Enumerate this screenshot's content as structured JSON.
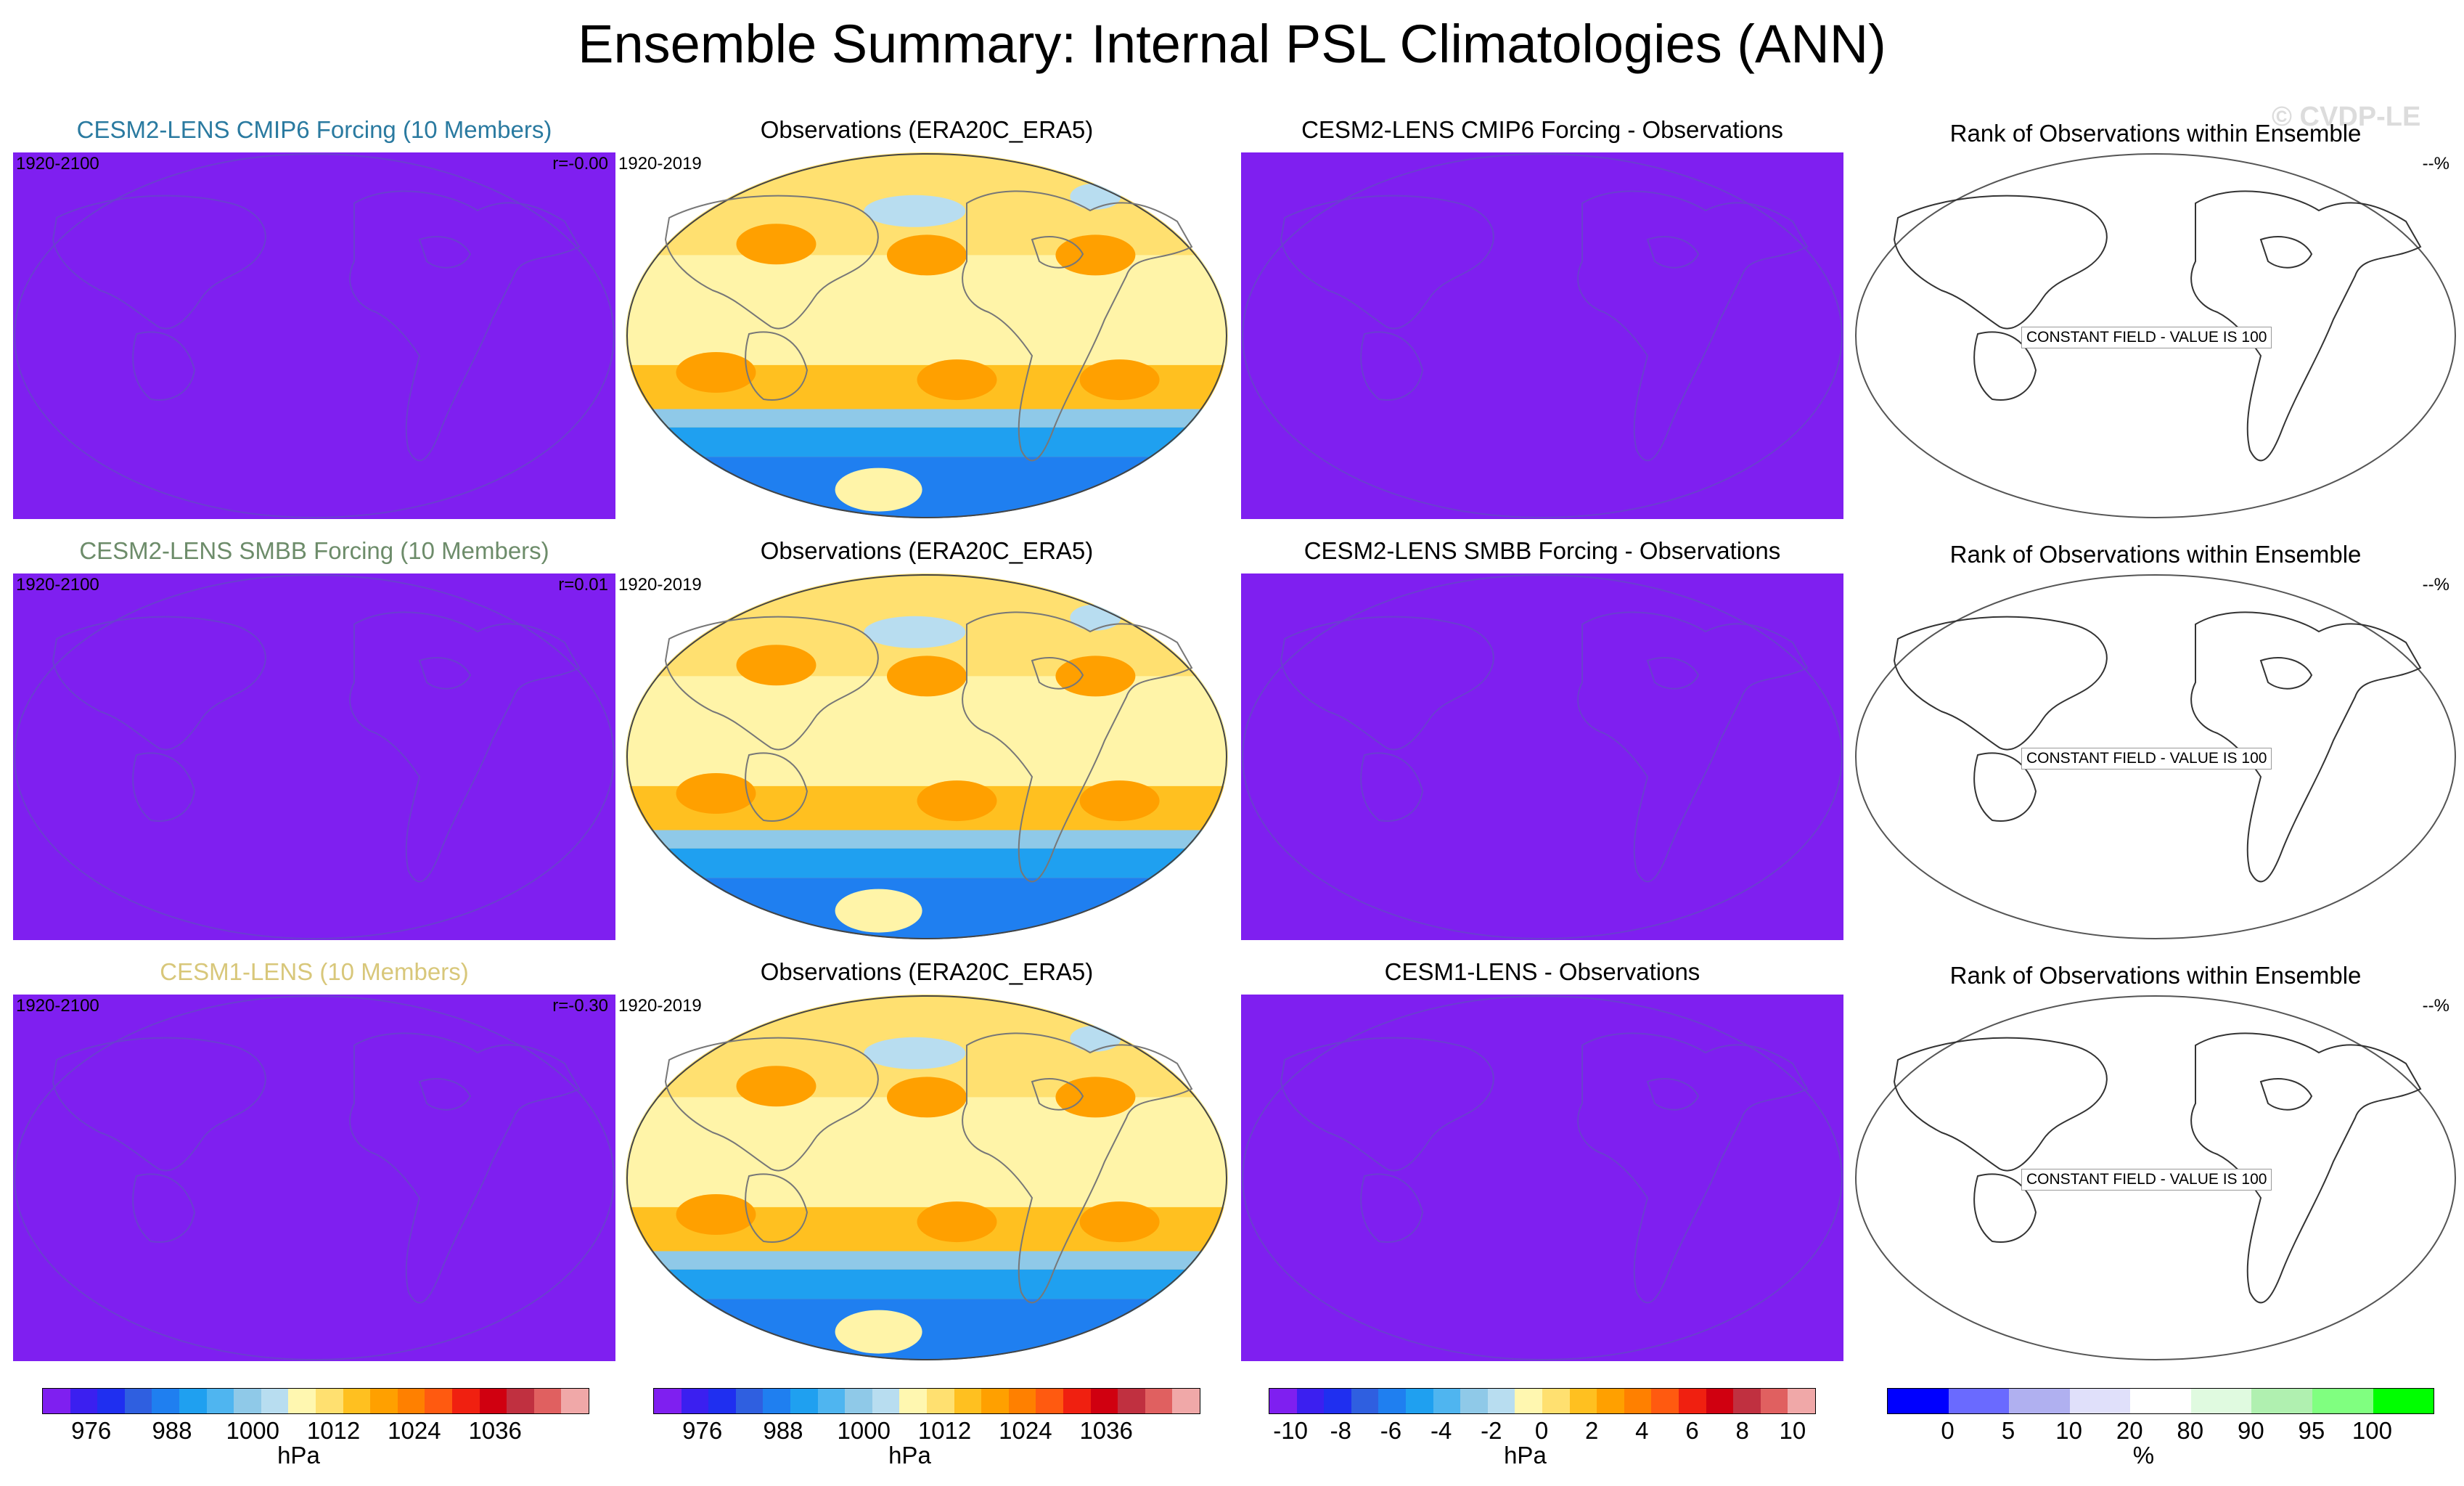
{
  "title": "Ensemble Summary: Internal PSL Climatologies (ANN)",
  "watermark": "© CVDP-LE",
  "colors": {
    "uniform_purple": "#7f1ff0"
  },
  "rows": [
    {
      "ensemble": {
        "title": "CESM2-LENS CMIP6 Forcing (10 Members)",
        "title_color": "#2a7aa0",
        "years": "1920-2100",
        "r": "r=-0.00"
      },
      "obs": {
        "title": "Observations (ERA20C_ERA5)",
        "years": "1920-2019"
      },
      "diff": {
        "title": "CESM2-LENS CMIP6 Forcing - Observations"
      },
      "rank": {
        "title": "Rank of Observations within Ensemble",
        "pct": "--%",
        "note": "CONSTANT FIELD - VALUE IS 100"
      }
    },
    {
      "ensemble": {
        "title": "CESM2-LENS SMBB Forcing (10 Members)",
        "title_color": "#6d8c6a",
        "years": "1920-2100",
        "r": "r=0.01"
      },
      "obs": {
        "title": "Observations (ERA20C_ERA5)",
        "years": "1920-2019"
      },
      "diff": {
        "title": "CESM2-LENS SMBB Forcing - Observations"
      },
      "rank": {
        "title": "Rank of Observations within Ensemble",
        "pct": "--%",
        "note": "CONSTANT FIELD - VALUE IS 100"
      }
    },
    {
      "ensemble": {
        "title": "CESM1-LENS (10 Members)",
        "title_color": "#d8c77a",
        "years": "1920-2100",
        "r": "r=-0.30"
      },
      "obs": {
        "title": "Observations (ERA20C_ERA5)",
        "years": "1920-2019"
      },
      "diff": {
        "title": "CESM1-LENS - Observations"
      },
      "rank": {
        "title": "Rank of Observations within Ensemble",
        "pct": "--%",
        "note": "CONSTANT FIELD - VALUE IS 100"
      }
    }
  ],
  "chart_data": [
    {
      "type": "heatmap",
      "role": "colorbar",
      "unit_label": "hPa",
      "tick_labels": [
        "976",
        "988",
        "1000",
        "1012",
        "1024",
        "1036"
      ],
      "colors": [
        "#7f1ff0",
        "#3b1ff0",
        "#1f2ff0",
        "#2f5fe0",
        "#1f7ff0",
        "#1fa0f0",
        "#4fb5f0",
        "#8fc9e8",
        "#b8ddf0",
        "#fff7b0",
        "#ffe070",
        "#ffc020",
        "#ffa000",
        "#ff8000",
        "#ff5a10",
        "#f02010",
        "#d00010",
        "#c03040",
        "#e06060",
        "#f0a8a8"
      ]
    },
    {
      "type": "heatmap",
      "role": "colorbar",
      "unit_label": "hPa",
      "tick_labels": [
        "976",
        "988",
        "1000",
        "1012",
        "1024",
        "1036"
      ],
      "colors": [
        "#7f1ff0",
        "#3b1ff0",
        "#1f2ff0",
        "#2f5fe0",
        "#1f7ff0",
        "#1fa0f0",
        "#4fb5f0",
        "#8fc9e8",
        "#b8ddf0",
        "#fff7b0",
        "#ffe070",
        "#ffc020",
        "#ffa000",
        "#ff8000",
        "#ff5a10",
        "#f02010",
        "#d00010",
        "#c03040",
        "#e06060",
        "#f0a8a8"
      ]
    },
    {
      "type": "heatmap",
      "role": "colorbar",
      "unit_label": "hPa",
      "tick_labels": [
        "-10",
        "-8",
        "-6",
        "-4",
        "-2",
        "0",
        "2",
        "4",
        "6",
        "8",
        "10"
      ],
      "colors": [
        "#7f1ff0",
        "#3b1ff0",
        "#1f2ff0",
        "#2f5fe0",
        "#1f7ff0",
        "#1fa0f0",
        "#4fb5f0",
        "#8fc9e8",
        "#b8ddf0",
        "#fff7b0",
        "#ffe070",
        "#ffc020",
        "#ffa000",
        "#ff8000",
        "#ff5a10",
        "#f02010",
        "#d00010",
        "#c03040",
        "#e06060",
        "#f0a8a8"
      ]
    },
    {
      "type": "heatmap",
      "role": "colorbar",
      "unit_label": "%",
      "tick_labels": [
        "0",
        "5",
        "10",
        "20",
        "80",
        "90",
        "95",
        "100"
      ],
      "colors": [
        "#0000ff",
        "#6a6aff",
        "#b0b0f0",
        "#e0e0fa",
        "#ffffff",
        "#e0fae0",
        "#b0f0b0",
        "#80ff80",
        "#00ff00"
      ]
    }
  ]
}
